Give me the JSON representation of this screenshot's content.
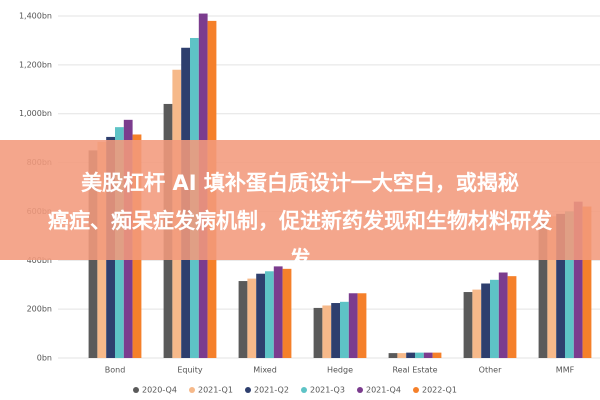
{
  "chart_data": {
    "type": "bar",
    "categories": [
      "Bond",
      "Equity",
      "Mixed",
      "Hedge",
      "Real Estate",
      "Other",
      "MMF"
    ],
    "series": [
      {
        "name": "2020-Q4",
        "color": "#5a5a5a",
        "values": [
          850,
          1040,
          315,
          205,
          20,
          270,
          560
        ]
      },
      {
        "name": "2021-Q1",
        "color": "#f6b98a",
        "values": [
          885,
          1180,
          325,
          215,
          20,
          280,
          580
        ]
      },
      {
        "name": "2021-Q2",
        "color": "#2e3f6e",
        "values": [
          905,
          1270,
          345,
          225,
          22,
          305,
          590
        ]
      },
      {
        "name": "2021-Q3",
        "color": "#5ec3c6",
        "values": [
          945,
          1310,
          355,
          230,
          22,
          320,
          600
        ]
      },
      {
        "name": "2021-Q4",
        "color": "#7b3c8e",
        "values": [
          975,
          1410,
          375,
          265,
          22,
          350,
          640
        ]
      },
      {
        "name": "2022-Q1",
        "color": "#f5802a",
        "values": [
          915,
          1380,
          365,
          265,
          22,
          335,
          620
        ]
      }
    ],
    "ylim": [
      0,
      1400
    ],
    "yticks": [
      {
        "value": 0,
        "label": "0bn"
      },
      {
        "value": 200,
        "label": "200bn"
      },
      {
        "value": 400,
        "label": "400bn"
      },
      {
        "value": 600,
        "label": "600bn"
      },
      {
        "value": 800,
        "label": "800bn"
      },
      {
        "value": 1000,
        "label": "1,000bn"
      },
      {
        "value": 1200,
        "label": "1,200bn"
      },
      {
        "value": 1400,
        "label": "1,400bn"
      }
    ],
    "grid": true,
    "legend": "bottom",
    "annotation": [
      "美股杠杆 AI 填补蛋白质设计一大空白，或揭秘",
      "癌症、痴呆症发病机制，促进新药发现和生物材料研发",
      "发"
    ]
  }
}
